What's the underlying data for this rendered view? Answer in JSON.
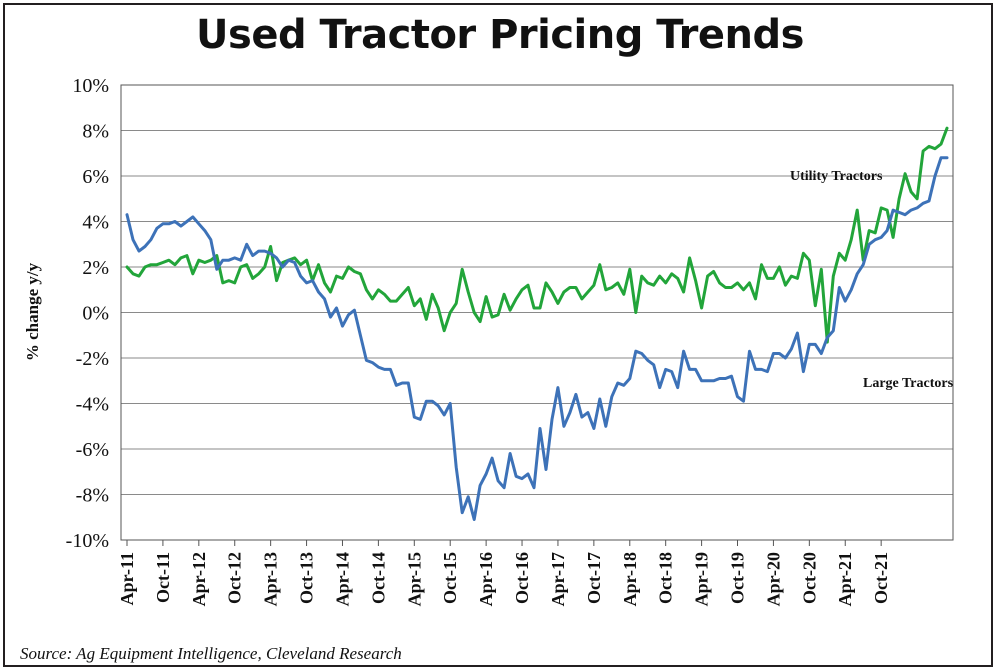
{
  "chart_data": {
    "type": "line",
    "title": "Used Tractor Pricing Trends",
    "source": "Source: Ag Equipment Intelligence, Cleveland Research",
    "xlabel": "",
    "ylabel": "% change y/y",
    "ylim": [
      -10,
      10
    ],
    "y_ticks": [
      "10%",
      "8%",
      "6%",
      "4%",
      "2%",
      "0%",
      "-2%",
      "-4%",
      "-6%",
      "-8%",
      "-10%"
    ],
    "x_ticks": [
      "Apr-11",
      "Oct-11",
      "Apr-12",
      "Oct-12",
      "Apr-13",
      "Oct-13",
      "Apr-14",
      "Oct-14",
      "Apr-15",
      "Oct-15",
      "Apr-16",
      "Oct-16",
      "Apr-17",
      "Oct-17",
      "Apr-18",
      "Oct-18",
      "Apr-19",
      "Oct-19",
      "Apr-20",
      "Oct-20",
      "Apr-21",
      "Oct-21"
    ],
    "x_start": "Apr-11",
    "x_step_months": 1,
    "grid": true,
    "series": [
      {
        "name": "Utility Tractors",
        "color": "#22a53a",
        "values": [
          2.0,
          1.7,
          1.6,
          2.0,
          2.1,
          2.1,
          2.2,
          2.3,
          2.1,
          2.4,
          2.5,
          1.7,
          2.3,
          2.2,
          2.3,
          2.5,
          1.3,
          1.4,
          1.3,
          2.0,
          2.1,
          1.5,
          1.7,
          2.0,
          2.9,
          1.4,
          2.2,
          2.3,
          2.4,
          2.1,
          2.3,
          1.4,
          2.1,
          1.3,
          0.9,
          1.6,
          1.5,
          2.0,
          1.8,
          1.7,
          1.0,
          0.6,
          1.0,
          0.8,
          0.5,
          0.5,
          0.8,
          1.1,
          0.3,
          0.6,
          -0.3,
          0.8,
          0.2,
          -0.8,
          0.0,
          0.4,
          1.9,
          0.9,
          0.0,
          -0.4,
          0.7,
          -0.2,
          -0.1,
          0.8,
          0.1,
          0.6,
          1.0,
          1.2,
          0.2,
          0.2,
          1.3,
          0.9,
          0.4,
          0.9,
          1.1,
          1.1,
          0.6,
          0.9,
          1.2,
          2.1,
          1.0,
          1.1,
          1.3,
          0.8,
          1.9,
          0.0,
          1.6,
          1.3,
          1.2,
          1.6,
          1.3,
          1.7,
          1.5,
          0.9,
          2.4,
          1.4,
          0.2,
          1.6,
          1.8,
          1.3,
          1.1,
          1.1,
          1.3,
          1.0,
          1.3,
          0.6,
          2.1,
          1.5,
          1.5,
          2.0,
          1.2,
          1.6,
          1.5,
          2.6,
          2.3,
          0.3,
          1.9,
          -1.3,
          1.6,
          2.6,
          2.3,
          3.2,
          4.5,
          2.3,
          3.6,
          3.5,
          4.6,
          4.5,
          3.3,
          5.0,
          6.1,
          5.3,
          5.0,
          7.1,
          7.3,
          7.2,
          7.4,
          8.1
        ]
      },
      {
        "name": "Large Tractors",
        "color": "#3d72b8",
        "values": [
          4.3,
          3.2,
          2.7,
          2.9,
          3.2,
          3.7,
          3.9,
          3.9,
          4.0,
          3.8,
          4.0,
          4.2,
          3.9,
          3.6,
          3.2,
          1.9,
          2.3,
          2.3,
          2.4,
          2.3,
          3.0,
          2.5,
          2.7,
          2.7,
          2.6,
          2.4,
          2.0,
          2.3,
          2.2,
          1.6,
          1.3,
          1.4,
          0.9,
          0.6,
          -0.2,
          0.2,
          -0.6,
          -0.1,
          0.1,
          -1.0,
          -2.1,
          -2.2,
          -2.4,
          -2.5,
          -2.5,
          -3.2,
          -3.1,
          -3.1,
          -4.6,
          -4.7,
          -3.9,
          -3.9,
          -4.1,
          -4.5,
          -4.0,
          -6.8,
          -8.8,
          -8.1,
          -9.1,
          -7.6,
          -7.1,
          -6.4,
          -7.4,
          -7.7,
          -6.2,
          -7.2,
          -7.3,
          -7.1,
          -7.7,
          -5.1,
          -6.9,
          -4.7,
          -3.3,
          -5.0,
          -4.4,
          -3.6,
          -4.6,
          -4.4,
          -5.1,
          -3.8,
          -5.0,
          -3.7,
          -3.1,
          -3.2,
          -2.9,
          -1.7,
          -1.8,
          -2.1,
          -2.3,
          -3.3,
          -2.5,
          -2.6,
          -3.3,
          -1.7,
          -2.5,
          -2.5,
          -3.0,
          -3.0,
          -3.0,
          -2.9,
          -2.9,
          -2.8,
          -3.7,
          -3.9,
          -1.7,
          -2.5,
          -2.5,
          -2.6,
          -1.8,
          -1.8,
          -2.0,
          -1.6,
          -0.9,
          -2.6,
          -1.4,
          -1.4,
          -1.8,
          -1.1,
          -0.8,
          1.1,
          0.5,
          1.0,
          1.7,
          2.1,
          3.0,
          3.2,
          3.3,
          3.6,
          4.5,
          4.4,
          4.3,
          4.5,
          4.6,
          4.8,
          4.9,
          6.0,
          6.8,
          6.8
        ]
      }
    ]
  }
}
